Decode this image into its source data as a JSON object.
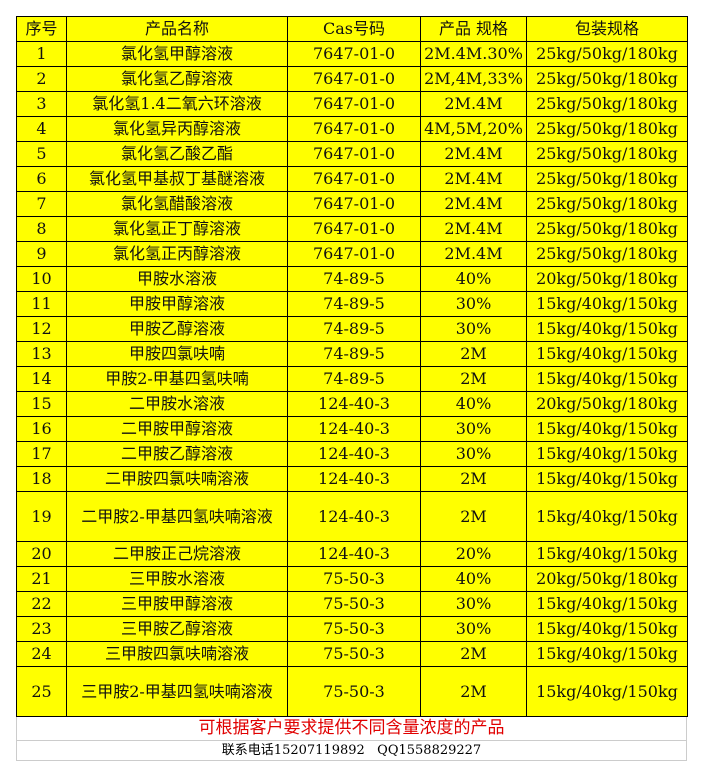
{
  "headers": [
    "序号",
    "产品名称",
    "Cas号码",
    "产品 规格",
    "包装规格"
  ],
  "rows": [
    [
      "1",
      "氯化氢甲醇溶液",
      "7647-01-0",
      "2M.4M.30%",
      "25kg/50kg/180kg"
    ],
    [
      "2",
      "氯化氢乙醇溶液",
      "7647-01-0",
      "2M,4M,33%",
      "25kg/50kg/180kg"
    ],
    [
      "3",
      "氯化氢1.4二氧六环溶液",
      "7647-01-0",
      "2M.4M",
      "25kg/50kg/180kg"
    ],
    [
      "4",
      "氯化氢异丙醇溶液",
      "7647-01-0",
      "4M,5M,20%",
      "25kg/50kg/180kg"
    ],
    [
      "5",
      "氯化氢乙酸乙酯",
      "7647-01-0",
      "2M.4M",
      "25kg/50kg/180kg"
    ],
    [
      "6",
      "氯化氢甲基叔丁基醚溶液",
      "7647-01-0",
      "2M.4M",
      "25kg/50kg/180kg"
    ],
    [
      "7",
      "氯化氢醋酸溶液",
      "7647-01-0",
      "2M.4M",
      "25kg/50kg/180kg"
    ],
    [
      "8",
      "氯化氢正丁醇溶液",
      "7647-01-0",
      "2M.4M",
      "25kg/50kg/180kg"
    ],
    [
      "9",
      "氯化氢正丙醇溶液",
      "7647-01-0",
      "2M.4M",
      "25kg/50kg/180kg"
    ],
    [
      "10",
      "甲胺水溶液",
      "74-89-5",
      "40%",
      "20kg/50kg/180kg"
    ],
    [
      "11",
      "甲胺甲醇溶液",
      "74-89-5",
      "30%",
      "15kg/40kg/150kg"
    ],
    [
      "12",
      "甲胺乙醇溶液",
      "74-89-5",
      "30%",
      "15kg/40kg/150kg"
    ],
    [
      "13",
      "甲胺四氯呋喃",
      "74-89-5",
      "2M",
      "15kg/40kg/150kg"
    ],
    [
      "14",
      "甲胺2-甲基四氢呋喃",
      "74-89-5",
      "2M",
      "15kg/40kg/150kg"
    ],
    [
      "15",
      "二甲胺水溶液",
      "124-40-3",
      "40%",
      "20kg/50kg/180kg"
    ],
    [
      "16",
      "二甲胺甲醇溶液",
      "124-40-3",
      "30%",
      "15kg/40kg/150kg"
    ],
    [
      "17",
      "二甲胺乙醇溶液",
      "124-40-3",
      "30%",
      "15kg/40kg/150kg"
    ],
    [
      "18",
      "二甲胺四氯呋喃溶液",
      "124-40-3",
      "2M",
      "15kg/40kg/150kg"
    ],
    [
      "19",
      "二甲胺2-甲基四氢呋喃溶液",
      "124-40-3",
      "2M",
      "15kg/40kg/150kg"
    ],
    [
      "20",
      "二甲胺正己烷溶液",
      "124-40-3",
      "20%",
      "15kg/40kg/150kg"
    ],
    [
      "21",
      "三甲胺水溶液",
      "75-50-3",
      "40%",
      "20kg/50kg/180kg"
    ],
    [
      "22",
      "三甲胺甲醇溶液",
      "75-50-3",
      "30%",
      "15kg/40kg/150kg"
    ],
    [
      "23",
      "三甲胺乙醇溶液",
      "75-50-3",
      "30%",
      "15kg/40kg/150kg"
    ],
    [
      "24",
      "三甲胺四氯呋喃溶液",
      "75-50-3",
      "2M",
      "15kg/40kg/150kg"
    ],
    [
      "25",
      "三甲胺2-甲基四氢呋喃溶液",
      "75-50-3",
      "2M",
      "15kg/40kg/150kg"
    ]
  ],
  "note": "可根据客户要求提供不同含量浓度的产品",
  "contact": "联系电话15207119892   QQ1558829227",
  "colors": {
    "cell_bg": "#ffff00",
    "note_text": "#e00000"
  }
}
